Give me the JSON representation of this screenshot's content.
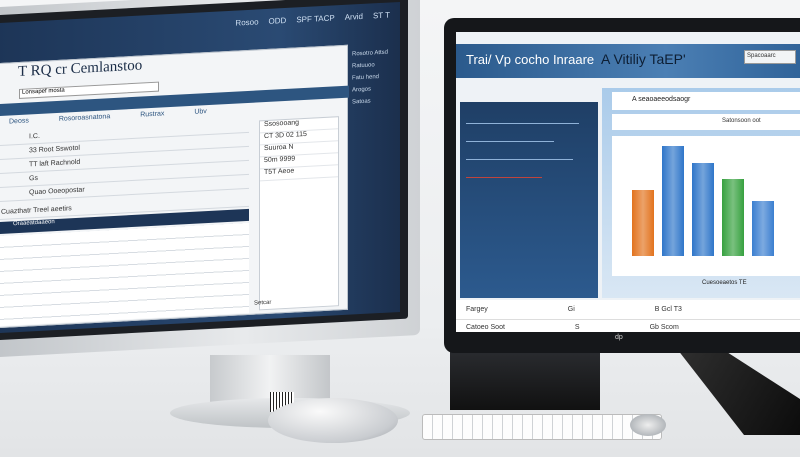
{
  "left_monitor": {
    "title": "T RQ cr Cemlanstoo",
    "top_nav": [
      "Rosoo",
      "ODD",
      "SPF TACP",
      "Arvid",
      "ST T"
    ],
    "search_text": "Lonsapef mosta",
    "columns": [
      "Deoss",
      "Rosoroasnatona",
      "Rustrax",
      "Ubv"
    ],
    "rows": [
      "I.C.",
      "33 Root Sswotol",
      "TT laft Rachnold",
      "Gs",
      "Quao Ooeopostar",
      "Cuazthatr Treel aeetirs"
    ],
    "section_label": "Oraaeatdaaeon",
    "side_items": [
      "Ssosooang",
      "CT 3D 02 115",
      "Suuroa N",
      "50m 9999",
      "T5T Aeoe"
    ],
    "panel_items": [
      "Rosotro Attsd",
      "Ratuuoo",
      "Fatu hend",
      "Arogos",
      "Satoas"
    ],
    "footer": "Setcar"
  },
  "right_monitor": {
    "title": "Trai/ Vp cocho Inraare",
    "subtitle": "A Vitiliy TaEP'",
    "search_button": "Spacoaarc",
    "banner": "A seaoaeeodsaogr",
    "banner_sub": "Satonsoon oot",
    "chart_caption": "Cuesoeaetos TE",
    "footer_rows": [
      [
        "Fargey",
        "Gi",
        "B Gcl T3"
      ],
      [
        "Catoeo Soot",
        "S",
        "Gb Scom"
      ]
    ],
    "chart_colors": [
      "#e2731e",
      "#2f76c9",
      "#2f76c9",
      "#37a13f",
      "#3b7fd0"
    ],
    "chart_values": [
      60,
      100,
      85,
      70,
      50
    ]
  },
  "brand_logo": "dp"
}
